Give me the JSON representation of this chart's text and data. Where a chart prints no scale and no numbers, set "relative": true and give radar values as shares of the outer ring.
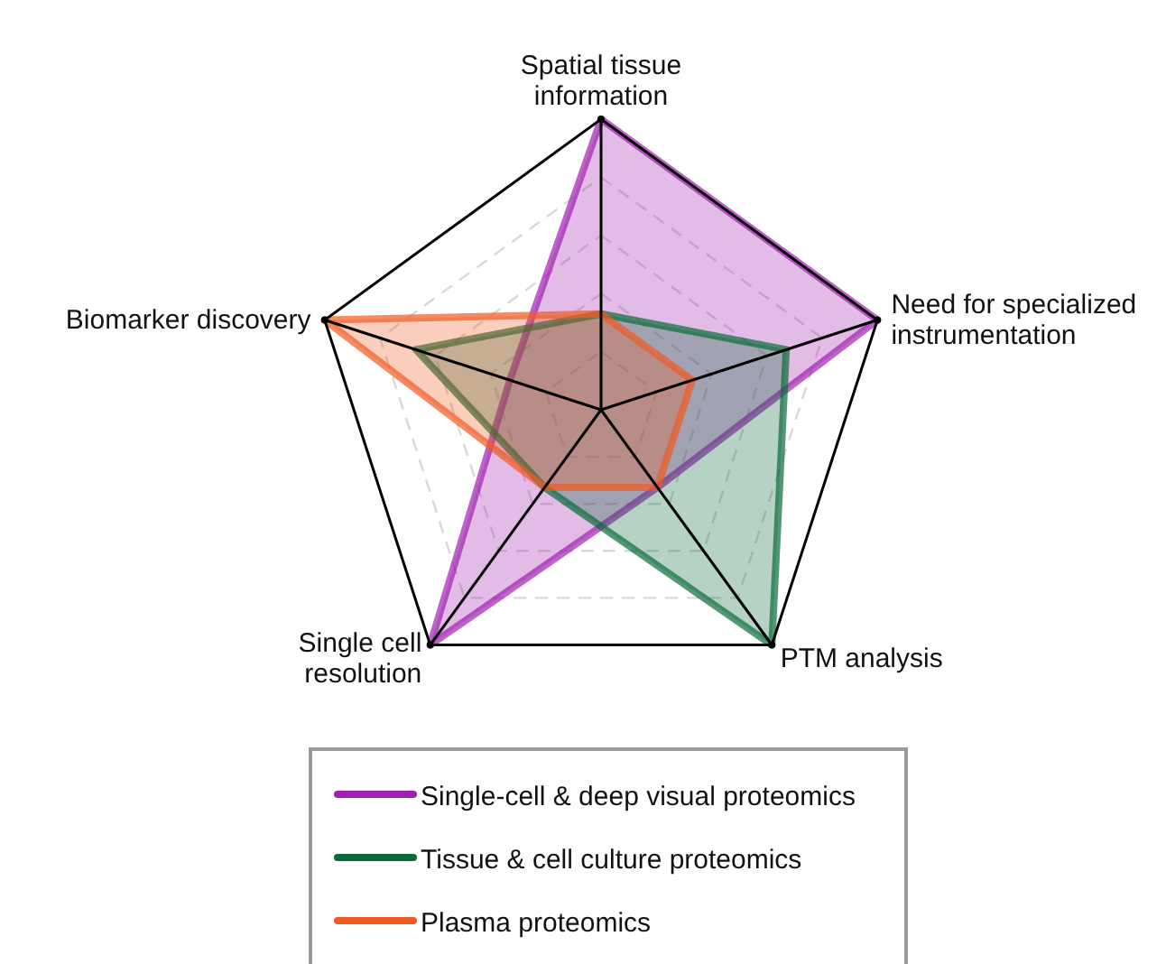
{
  "chart_data": {
    "type": "radar",
    "relative": true,
    "grid": true,
    "legend": "bottom",
    "categories": [
      "Spatial tissue\ninformation",
      "Need for specialized\ninstrumentation",
      "PTM analysis",
      "Single cell\nresolution",
      "Biomarker discovery"
    ],
    "series": [
      {
        "name": "Single-cell & deep visual proteomics",
        "color": "#a020b0",
        "values": [
          1,
          1,
          0.33,
          1,
          0.33
        ]
      },
      {
        "name": "Tissue & cell culture proteomics",
        "color": "#0a6b3a",
        "values": [
          0.33,
          0.67,
          1,
          0.33,
          0.67
        ]
      },
      {
        "name": "Plasma proteomics",
        "color": "#f05a22",
        "values": [
          0.33,
          0.33,
          0.33,
          0.33,
          1
        ]
      }
    ]
  }
}
